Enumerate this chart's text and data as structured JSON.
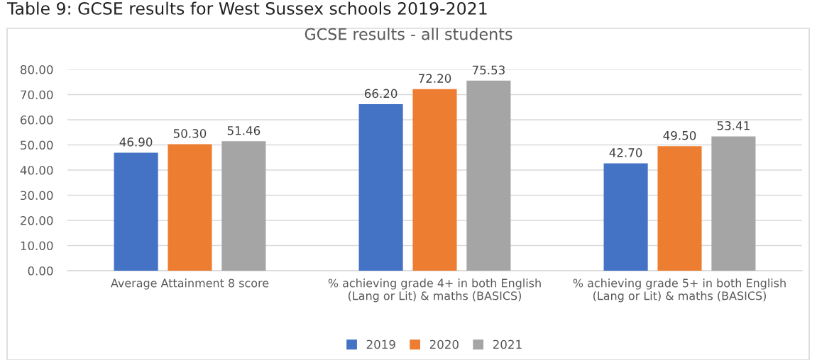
{
  "chart_data": {
    "type": "bar",
    "title": "GCSE results - all students",
    "annotations": [
      "Table 9: GCSE results for West Sussex schools 2019-2021"
    ],
    "categories": [
      "Average Attainment 8 score",
      "% achieving grade 4+ in both English (Lang or Lit) & maths (BASICS)",
      "% achieving grade 5+ in both English (Lang or Lit) & maths (BASICS)"
    ],
    "series": [
      {
        "name": "2019",
        "color": "#4472c4",
        "values": [
          46.9,
          66.2,
          42.7
        ],
        "value_labels": [
          "46.90",
          "66.20",
          "42.70"
        ]
      },
      {
        "name": "2020",
        "color": "#ed7d31",
        "values": [
          50.3,
          72.2,
          49.5
        ],
        "value_labels": [
          "50.30",
          "72.20",
          "49.50"
        ]
      },
      {
        "name": "2021",
        "color": "#a5a5a5",
        "values": [
          51.46,
          75.53,
          53.41
        ],
        "value_labels": [
          "51.46",
          "75.53",
          "53.41"
        ]
      }
    ],
    "ylim": [
      0,
      80
    ],
    "yticks": [
      {
        "value": 0,
        "label": "0.00"
      },
      {
        "value": 10,
        "label": "10.00"
      },
      {
        "value": 20,
        "label": "20.00"
      },
      {
        "value": 30,
        "label": "30.00"
      },
      {
        "value": 40,
        "label": "40.00"
      },
      {
        "value": 50,
        "label": "50.00"
      },
      {
        "value": 60,
        "label": "60.00"
      },
      {
        "value": 70,
        "label": "70.00"
      },
      {
        "value": 80,
        "label": "80.00"
      }
    ],
    "grid": "y",
    "legend": "bottom"
  }
}
